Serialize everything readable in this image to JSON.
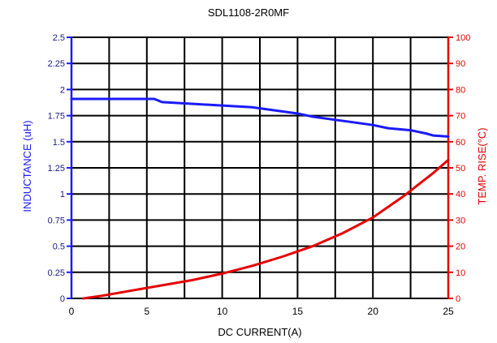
{
  "chart_data": {
    "type": "line",
    "title": "SDL1108-2R0MF",
    "xlabel": "DC CURRENT(A)",
    "ylabel": "INDUCTANCE (uH)",
    "y2label": "TEMP. RISE(°C)",
    "xlim": [
      0,
      25
    ],
    "ylim": [
      0,
      2.5
    ],
    "y2lim": [
      0,
      100
    ],
    "x_ticks": [
      "0",
      "5",
      "10",
      "15",
      "20",
      "25"
    ],
    "y_ticks": [
      "0",
      "0.25",
      "0.5",
      "0.75",
      "1",
      "1.25",
      "1.5",
      "1.75",
      "2",
      "2.25",
      "2.5"
    ],
    "y2_ticks": [
      "0",
      "10",
      "20",
      "30",
      "40",
      "50",
      "60",
      "70",
      "80",
      "90",
      "100"
    ],
    "grid": true,
    "colors": {
      "inductance": "#1a1aff",
      "temp_rise": "#e60000",
      "grid": "#000000",
      "axis_left": "#1a1aff",
      "axis_right": "#e60000"
    },
    "series": [
      {
        "key": "inductance",
        "axis": "left",
        "x": [
          0,
          5.5,
          6,
          12,
          13,
          15,
          16,
          17.5,
          18.5,
          20,
          21,
          22.5,
          23.5,
          24,
          25
        ],
        "values": [
          1.91,
          1.91,
          1.88,
          1.83,
          1.81,
          1.77,
          1.74,
          1.71,
          1.69,
          1.66,
          1.63,
          1.61,
          1.58,
          1.56,
          1.55
        ]
      },
      {
        "key": "temp_rise",
        "axis": "right",
        "x": [
          0.8,
          2,
          4,
          6,
          8,
          10,
          12,
          14,
          16,
          18,
          20,
          22,
          24,
          25
        ],
        "values": [
          0,
          1,
          3,
          5,
          7,
          9.5,
          12.5,
          16,
          20,
          25,
          31,
          39,
          48,
          53
        ]
      }
    ]
  }
}
